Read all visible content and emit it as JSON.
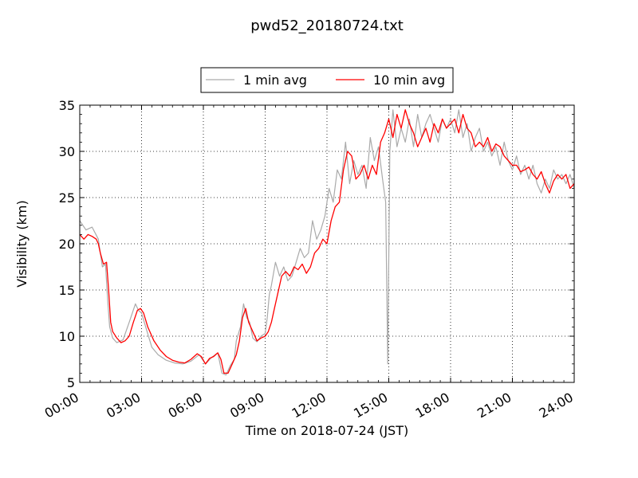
{
  "chart_data": {
    "type": "line",
    "title": "pwd52_20180724.txt",
    "xlabel": "Time on 2018-07-24 (JST)",
    "ylabel": "Visibility (km)",
    "xlim": [
      0,
      24
    ],
    "ylim": [
      5,
      35
    ],
    "x_ticks": [
      0,
      3,
      6,
      9,
      12,
      15,
      18,
      21,
      24
    ],
    "x_tick_labels": [
      "00:00",
      "03:00",
      "06:00",
      "09:00",
      "12:00",
      "15:00",
      "18:00",
      "21:00",
      "24:00"
    ],
    "y_ticks": [
      5,
      10,
      15,
      20,
      25,
      30,
      35
    ],
    "y_tick_labels": [
      "5",
      "10",
      "15",
      "20",
      "25",
      "30",
      "35"
    ],
    "grid": true,
    "legend_position": "top-center",
    "series": [
      {
        "name": "1 min avg",
        "color": "#aaaaaa",
        "x": [
          0.0,
          0.3,
          0.6,
          0.9,
          1.0,
          1.1,
          1.25,
          1.35,
          1.45,
          1.6,
          1.8,
          2.1,
          2.4,
          2.7,
          2.85,
          3.0,
          3.2,
          3.5,
          3.8,
          4.2,
          4.6,
          5.0,
          5.4,
          5.8,
          6.1,
          6.4,
          6.7,
          6.9,
          7.1,
          7.3,
          7.5,
          7.6,
          7.8,
          7.95,
          8.1,
          8.25,
          8.4,
          8.6,
          8.8,
          9.0,
          9.1,
          9.2,
          9.3,
          9.5,
          9.7,
          9.9,
          10.1,
          10.3,
          10.5,
          10.7,
          10.9,
          11.1,
          11.3,
          11.5,
          11.7,
          11.9,
          12.1,
          12.3,
          12.5,
          12.7,
          12.9,
          13.1,
          13.3,
          13.5,
          13.7,
          13.9,
          14.1,
          14.3,
          14.5,
          14.7,
          14.85,
          14.95,
          15.05,
          15.2,
          15.4,
          15.6,
          15.8,
          16.0,
          16.2,
          16.4,
          16.6,
          16.8,
          17.0,
          17.2,
          17.4,
          17.6,
          17.8,
          18.0,
          18.2,
          18.4,
          18.6,
          18.8,
          19.0,
          19.2,
          19.4,
          19.6,
          19.8,
          20.0,
          20.2,
          20.4,
          20.6,
          20.8,
          21.0,
          21.2,
          21.4,
          21.6,
          21.8,
          22.0,
          22.2,
          22.4,
          22.6,
          22.8,
          23.0,
          23.2,
          23.4,
          23.6,
          23.8,
          24.0
        ],
        "y": [
          22.5,
          21.5,
          21.8,
          20.5,
          19.0,
          17.5,
          17.8,
          14.0,
          11.0,
          9.8,
          9.3,
          9.6,
          11.5,
          13.5,
          12.8,
          12.5,
          11.0,
          8.8,
          8.0,
          7.4,
          7.1,
          7.0,
          7.3,
          8.0,
          7.0,
          7.7,
          8.2,
          6.0,
          5.8,
          6.8,
          7.5,
          9.5,
          11.0,
          13.5,
          12.0,
          11.5,
          9.8,
          9.4,
          10.0,
          10.3,
          12.0,
          14.5,
          15.5,
          18.0,
          16.5,
          17.5,
          16.0,
          16.5,
          18.0,
          19.5,
          18.5,
          19.0,
          22.5,
          20.5,
          21.5,
          23.0,
          26.0,
          24.5,
          28.0,
          27.0,
          31.0,
          26.5,
          29.0,
          27.5,
          28.5,
          26.0,
          31.5,
          29.0,
          30.5,
          27.0,
          24.5,
          7.0,
          30.0,
          34.5,
          30.5,
          32.5,
          31.0,
          33.5,
          30.5,
          34.0,
          31.5,
          33.0,
          34.0,
          32.5,
          31.0,
          33.5,
          32.5,
          33.5,
          32.0,
          34.5,
          31.5,
          33.0,
          30.0,
          31.5,
          32.5,
          30.0,
          31.0,
          29.5,
          30.5,
          28.5,
          31.0,
          29.0,
          28.0,
          29.5,
          27.5,
          28.5,
          27.0,
          28.5,
          26.5,
          25.5,
          27.0,
          26.0,
          28.0,
          27.0,
          27.5,
          26.5,
          27.5,
          26.0
        ]
      },
      {
        "name": "10 min avg",
        "color": "#ff0000",
        "x": [
          0.0,
          0.2,
          0.4,
          0.6,
          0.8,
          0.9,
          1.0,
          1.15,
          1.3,
          1.4,
          1.5,
          1.6,
          1.8,
          2.0,
          2.2,
          2.4,
          2.6,
          2.8,
          2.95,
          3.1,
          3.3,
          3.6,
          3.9,
          4.2,
          4.5,
          4.8,
          5.1,
          5.4,
          5.7,
          5.9,
          6.1,
          6.3,
          6.5,
          6.7,
          6.85,
          7.0,
          7.2,
          7.4,
          7.6,
          7.75,
          7.9,
          8.05,
          8.2,
          8.4,
          8.6,
          8.8,
          9.0,
          9.15,
          9.3,
          9.45,
          9.6,
          9.8,
          10.0,
          10.2,
          10.4,
          10.6,
          10.8,
          11.0,
          11.2,
          11.4,
          11.6,
          11.8,
          12.0,
          12.2,
          12.4,
          12.6,
          12.8,
          13.0,
          13.2,
          13.4,
          13.6,
          13.8,
          14.0,
          14.2,
          14.4,
          14.6,
          14.8,
          15.0,
          15.2,
          15.4,
          15.6,
          15.8,
          16.0,
          16.2,
          16.4,
          16.6,
          16.8,
          17.0,
          17.2,
          17.4,
          17.6,
          17.8,
          18.0,
          18.2,
          18.4,
          18.6,
          18.8,
          19.0,
          19.2,
          19.4,
          19.6,
          19.8,
          20.0,
          20.2,
          20.4,
          20.6,
          20.8,
          21.0,
          21.2,
          21.4,
          21.6,
          21.8,
          22.0,
          22.2,
          22.4,
          22.6,
          22.8,
          23.0,
          23.2,
          23.4,
          23.6,
          23.8,
          24.0
        ],
        "y": [
          21.0,
          20.5,
          21.0,
          20.8,
          20.5,
          20.0,
          19.0,
          17.8,
          18.0,
          15.0,
          11.5,
          10.5,
          9.8,
          9.3,
          9.5,
          10.0,
          11.5,
          12.8,
          13.0,
          12.5,
          11.0,
          9.5,
          8.5,
          7.8,
          7.4,
          7.2,
          7.1,
          7.5,
          8.1,
          7.8,
          7.0,
          7.6,
          7.8,
          8.2,
          7.5,
          6.0,
          6.0,
          7.0,
          8.0,
          9.5,
          12.0,
          13.0,
          11.5,
          10.5,
          9.5,
          9.8,
          10.0,
          10.5,
          11.5,
          13.0,
          14.5,
          16.5,
          17.0,
          16.5,
          17.5,
          17.2,
          17.8,
          16.8,
          17.5,
          19.0,
          19.5,
          20.5,
          20.0,
          22.5,
          24.0,
          24.5,
          28.0,
          30.0,
          29.5,
          27.0,
          27.5,
          28.5,
          27.0,
          28.5,
          27.5,
          31.0,
          32.0,
          33.5,
          31.5,
          34.0,
          32.5,
          34.5,
          33.0,
          32.0,
          30.5,
          31.5,
          32.5,
          31.0,
          33.0,
          32.0,
          33.5,
          32.5,
          33.0,
          33.5,
          32.0,
          34.0,
          32.5,
          32.0,
          30.5,
          31.0,
          30.5,
          31.5,
          30.0,
          30.8,
          30.5,
          29.5,
          29.0,
          28.5,
          28.5,
          27.8,
          28.0,
          28.3,
          27.5,
          27.0,
          27.8,
          26.5,
          25.5,
          26.8,
          27.5,
          27.0,
          27.5,
          26.0,
          26.5
        ]
      }
    ]
  }
}
